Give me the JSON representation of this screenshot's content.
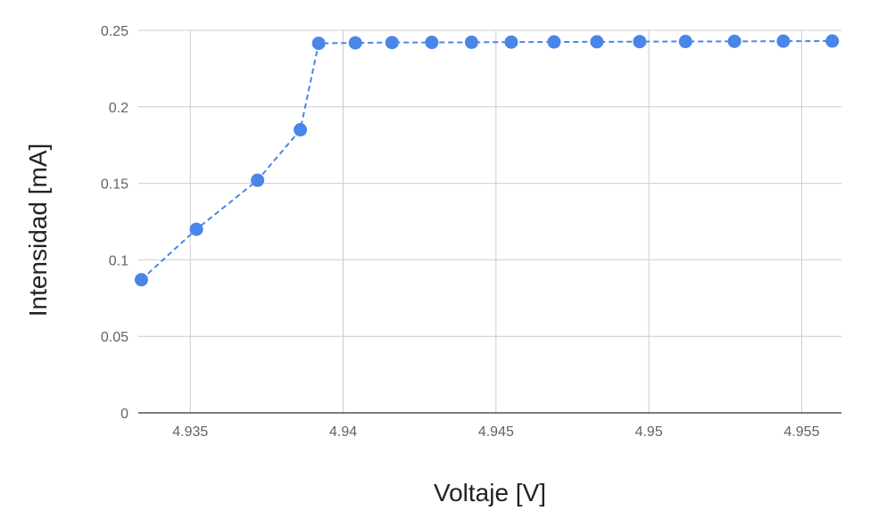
{
  "chart_data": {
    "type": "scatter",
    "xlabel": "Voltaje [V]",
    "ylabel": "Intensidad [mA]",
    "xlim": [
      4.9333,
      4.9563
    ],
    "ylim": [
      0,
      0.25
    ],
    "x_ticks": [
      4.935,
      4.94,
      4.945,
      4.95,
      4.955
    ],
    "x_tick_labels": [
      "4.935",
      "4.94",
      "4.945",
      "4.95",
      "4.955"
    ],
    "y_ticks": [
      0,
      0.05,
      0.1,
      0.15,
      0.2,
      0.25
    ],
    "y_tick_labels": [
      "0",
      "0.05",
      "0.1",
      "0.15",
      "0.2",
      "0.25"
    ],
    "grid": true,
    "line_style": "dashed",
    "series": [
      {
        "color": "#4a86e8",
        "x": [
          4.9334,
          4.9352,
          4.9372,
          4.9386,
          4.9392,
          4.9404,
          4.9416,
          4.9429,
          4.9442,
          4.9455,
          4.9469,
          4.9483,
          4.9497,
          4.9512,
          4.9528,
          4.9544,
          4.956
        ],
        "y": [
          0.087,
          0.12,
          0.152,
          0.185,
          0.2415,
          0.2418,
          0.242,
          0.2421,
          0.2422,
          0.2423,
          0.2424,
          0.2425,
          0.2426,
          0.2427,
          0.2428,
          0.2429,
          0.243
        ]
      }
    ]
  }
}
